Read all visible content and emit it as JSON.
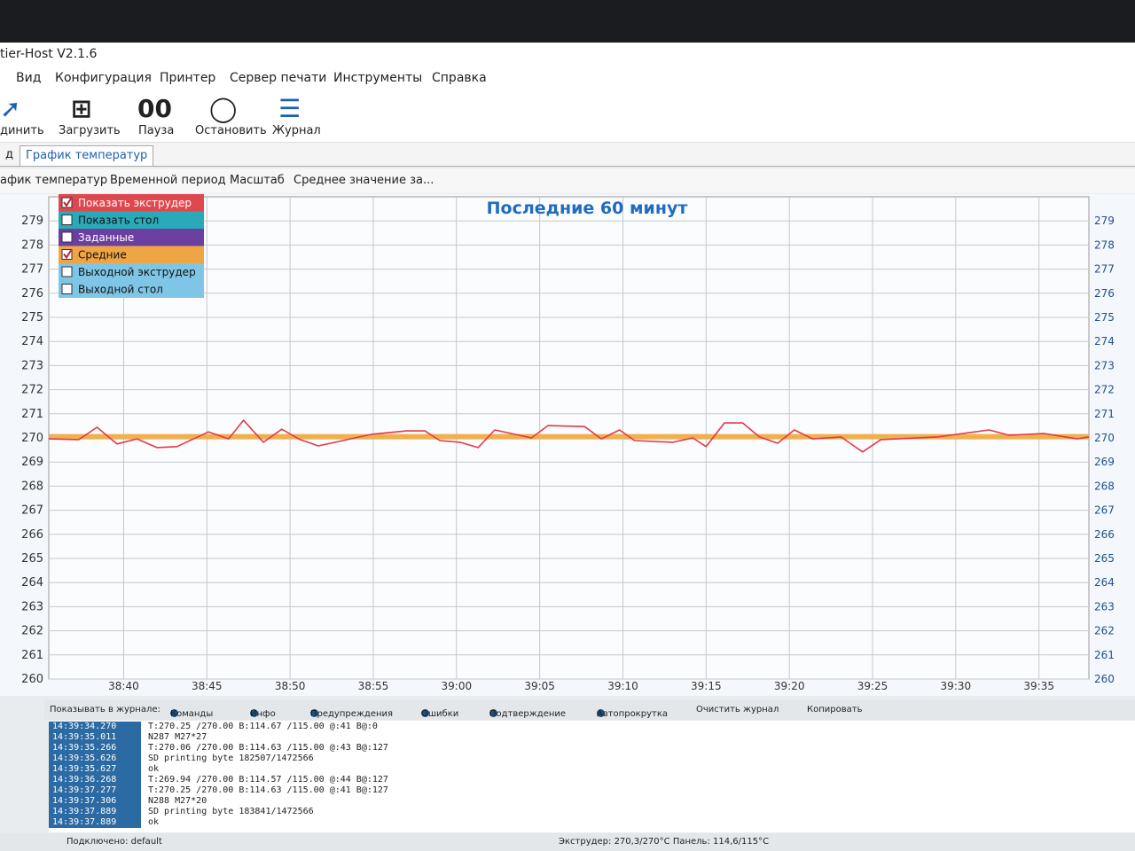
{
  "window": {
    "title": "tier-Host V2.1.6"
  },
  "menu": [
    "Вид",
    "Конфигурация",
    "Принтер",
    "Сервер печати",
    "Инструменты",
    "Справка"
  ],
  "toolbar": [
    "динить",
    "Загрузить",
    "Пауза",
    "Остановить",
    "Журнал"
  ],
  "tabs": [
    "д",
    "График температур"
  ],
  "chart_toolbar": [
    "афик температур",
    "Временной период",
    "Масштаб",
    "Среднее значение за..."
  ],
  "chart_data": {
    "type": "line",
    "title": "Последние 60 минут",
    "legend": [
      {
        "label": "Показать экструдер",
        "color": "#e0484f",
        "checked": true
      },
      {
        "label": "Показать стол",
        "color": "#2aa9b9",
        "checked": false
      },
      {
        "label": "Заданные",
        "color": "#6b3fa0",
        "checked": false
      },
      {
        "label": "Средние",
        "color": "#f0a545",
        "checked": true
      },
      {
        "label": "Выходной экструдер",
        "color": "#7fc6e6",
        "checked": false
      },
      {
        "label": "Выходной стол",
        "color": "#7fc6e6",
        "checked": false
      }
    ],
    "series": [
      {
        "name": "Средние",
        "color": "#f0b050",
        "x": [
          2315.5,
          2378
        ],
        "values": [
          270.05,
          270.05
        ]
      },
      {
        "name": "Показать экструдер",
        "color": "#e03a4a",
        "x": [
          2315.5,
          2317.3,
          2318.4,
          2319.6,
          2320.8,
          2322.0,
          2323.2,
          2325.1,
          2326.3,
          2327.2,
          2328.4,
          2329.5,
          2330.6,
          2331.7,
          2332.9,
          2334.9,
          2337.0,
          2338.1,
          2339.0,
          2340.2,
          2341.3,
          2342.3,
          2344.5,
          2345.5,
          2347.7,
          2348.7,
          2349.8,
          2350.7,
          2353.0,
          2354.2,
          2355.0,
          2356.1,
          2357.2,
          2358.2,
          2359.3,
          2360.3,
          2361.4,
          2363.1,
          2364.4,
          2365.5,
          2368.9,
          2372.0,
          2373.2,
          2375.3,
          2377.3,
          2378
        ],
        "values": [
          269.96,
          269.93,
          270.44,
          269.75,
          269.96,
          269.6,
          269.64,
          270.25,
          269.96,
          270.73,
          269.82,
          270.36,
          269.93,
          269.67,
          269.85,
          270.15,
          270.29,
          270.29,
          269.89,
          269.82,
          269.6,
          270.33,
          270,
          270.51,
          270.47,
          269.96,
          270.33,
          269.89,
          269.82,
          270,
          269.64,
          270.62,
          270.62,
          270.04,
          269.78,
          270.33,
          269.96,
          270.04,
          269.42,
          269.93,
          270.04,
          270.33,
          270.11,
          270.18,
          269.96,
          270.04
        ]
      }
    ],
    "xlim": [
      2315.5,
      2378
    ],
    "xticks": [
      {
        "value": 2320,
        "label": "38:40"
      },
      {
        "value": 2325,
        "label": "38:45"
      },
      {
        "value": 2330,
        "label": "38:50"
      },
      {
        "value": 2335,
        "label": "38:55"
      },
      {
        "value": 2340,
        "label": "39:00"
      },
      {
        "value": 2345,
        "label": "39:05"
      },
      {
        "value": 2350,
        "label": "39:10"
      },
      {
        "value": 2355,
        "label": "39:15"
      },
      {
        "value": 2360,
        "label": "39:20"
      },
      {
        "value": 2365,
        "label": "39:25"
      },
      {
        "value": 2370,
        "label": "39:30"
      },
      {
        "value": 2375,
        "label": "39:35"
      }
    ],
    "ylim": [
      260,
      280
    ],
    "yticks": [
      260,
      261,
      262,
      263,
      264,
      265,
      266,
      267,
      268,
      269,
      270,
      271,
      272,
      273,
      274,
      275,
      276,
      277,
      278,
      279
    ],
    "grid": true
  },
  "log": {
    "show_label": "Показывать в журнале:",
    "options": [
      "Команды",
      "Инфо",
      "Предупреждения",
      "Ошибки",
      "Подтверждение",
      "Автопрокрутка"
    ],
    "actions": [
      "Очистить журнал",
      "Копировать"
    ],
    "rows": [
      [
        "14:39:34.270",
        "T:270.25 /270.00 B:114.67 /115.00 @:41 B@:0"
      ],
      [
        "14:39:35.011",
        "N287 M27*27"
      ],
      [
        "14:39:35.266",
        "T:270.06 /270.00 B:114.63 /115.00 @:43 B@:127"
      ],
      [
        "14:39:35.626",
        "SD printing byte 182507/1472566"
      ],
      [
        "14:39:35.627",
        "ok"
      ],
      [
        "14:39:36.268",
        "T:269.94 /270.00 B:114.57 /115.00 @:44 B@:127"
      ],
      [
        "14:39:37.277",
        "T:270.25 /270.00 B:114.63 /115.00 @:41 B@:127"
      ],
      [
        "14:39:37.306",
        "N288 M27*20"
      ],
      [
        "14:39:37.889",
        "SD printing byte 183841/1472566"
      ],
      [
        "14:39:37.889",
        "ok"
      ]
    ]
  },
  "status": {
    "connection": "Подключено: default",
    "temps": "Экструдер: 270,3/270°C Панель: 114,6/115°C"
  }
}
